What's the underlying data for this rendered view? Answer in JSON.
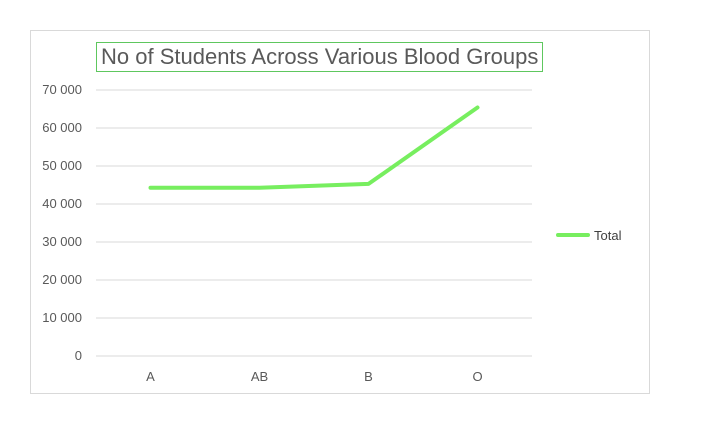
{
  "chart_data": {
    "type": "line",
    "title": "No of Students Across Various Blood Groups",
    "categories": [
      "A",
      "AB",
      "B",
      "O"
    ],
    "series": [
      {
        "name": "Total",
        "values": [
          44300,
          44300,
          45300,
          65400
        ],
        "color": "#77ee5f"
      }
    ],
    "y_ticks": [
      "0",
      "10 000",
      "20 000",
      "30 000",
      "40 000",
      "50 000",
      "60 000",
      "70 000"
    ],
    "ylim": [
      0,
      70000
    ],
    "grid": true,
    "legend": "right",
    "colors": {
      "gridline": "#d9d9d9",
      "title_border": "#5ec75e"
    }
  }
}
